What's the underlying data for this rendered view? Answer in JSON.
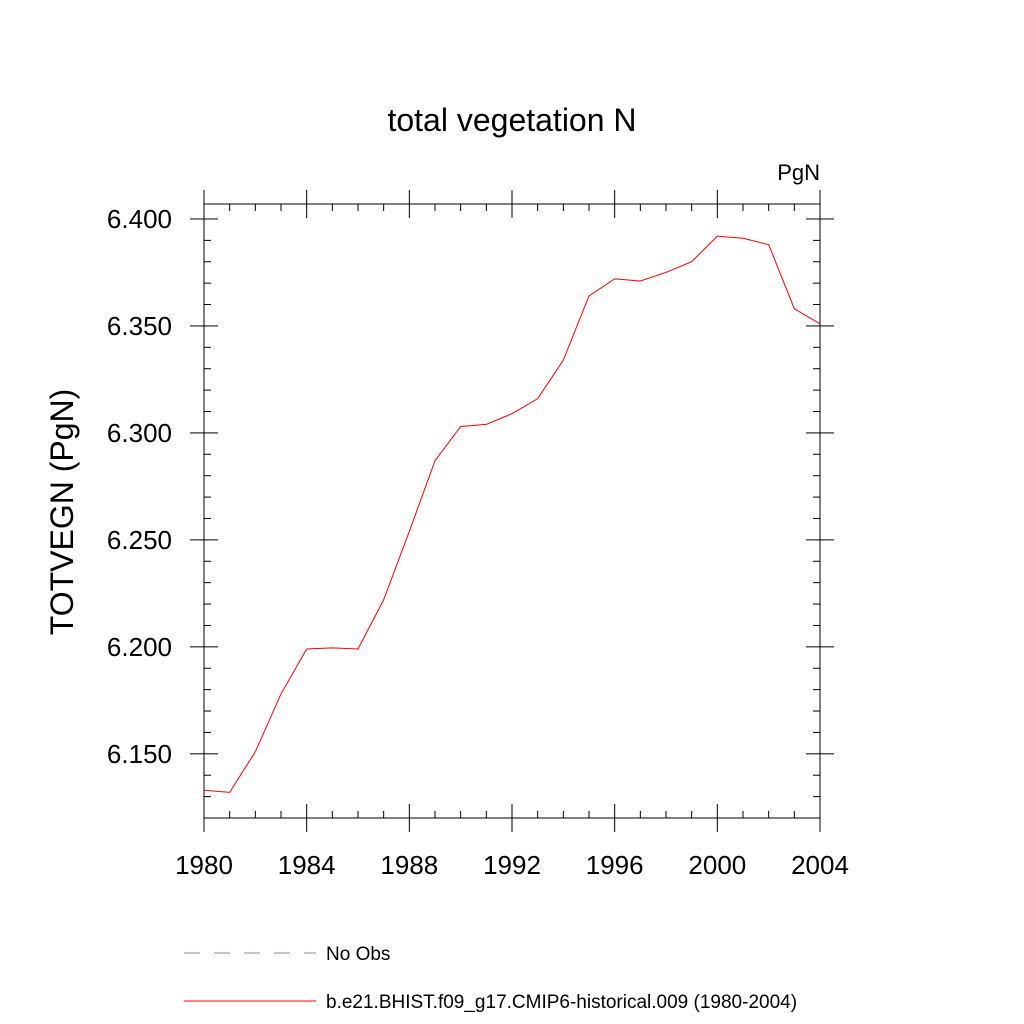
{
  "chart_data": {
    "type": "line",
    "title": "total vegetation N",
    "units_label": "PgN",
    "ylabel": "TOTVEGN  (PgN)",
    "xlabel": "",
    "xlim": [
      1980,
      2004
    ],
    "ylim": [
      6.12,
      6.407
    ],
    "x_ticks": [
      1980,
      1984,
      1988,
      1992,
      1996,
      2000,
      2004
    ],
    "y_ticks": [
      "6.150",
      "6.200",
      "6.250",
      "6.300",
      "6.350",
      "6.400"
    ],
    "grid": false,
    "legend_position": "bottom",
    "series": [
      {
        "name": "b.e21.BHIST.f09_g17.CMIP6-historical.009 (1980-2004)",
        "color": "#ff0000",
        "style": "solid",
        "x": [
          1980,
          1981,
          1982,
          1983,
          1984,
          1985,
          1986,
          1987,
          1988,
          1989,
          1990,
          1991,
          1992,
          1993,
          1994,
          1995,
          1996,
          1997,
          1998,
          1999,
          2000,
          2001,
          2002,
          2003,
          2004
        ],
        "values": [
          6.133,
          6.132,
          6.151,
          6.178,
          6.199,
          6.1995,
          6.199,
          6.222,
          6.254,
          6.287,
          6.303,
          6.304,
          6.309,
          6.316,
          6.334,
          6.364,
          6.372,
          6.371,
          6.375,
          6.38,
          6.392,
          6.391,
          6.388,
          6.358,
          6.351
        ]
      }
    ],
    "legend": [
      {
        "label": "No Obs",
        "color": "#7f7fbf",
        "style": "dashed"
      },
      {
        "label": "b.e21.BHIST.f09_g17.CMIP6-historical.009 (1980-2004)",
        "color": "#ff0000",
        "style": "solid"
      }
    ]
  }
}
